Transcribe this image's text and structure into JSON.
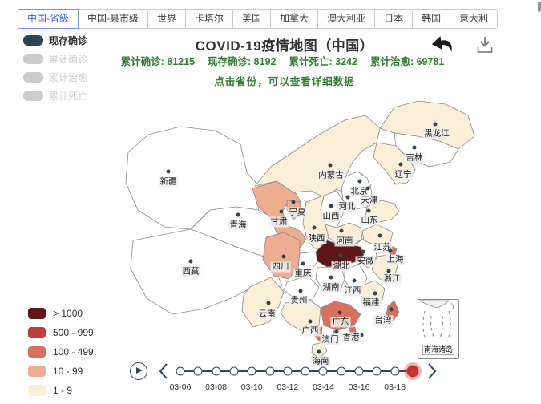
{
  "tabs": {
    "items": [
      {
        "label": "中国-省级",
        "active": true
      },
      {
        "label": "中国-县市级",
        "active": false
      },
      {
        "label": "世界",
        "active": false
      },
      {
        "label": "卡塔尔",
        "active": false
      },
      {
        "label": "美国",
        "active": false
      },
      {
        "label": "加拿大",
        "active": false
      },
      {
        "label": "澳大利亚",
        "active": false
      },
      {
        "label": "日本",
        "active": false
      },
      {
        "label": "韩国",
        "active": false
      },
      {
        "label": "意大利",
        "active": false
      }
    ]
  },
  "header": {
    "title": "COVID-19疫情地图（中国）",
    "stats": [
      {
        "label": "累计确诊",
        "value": "81215"
      },
      {
        "label": "现存确诊",
        "value": "8192"
      },
      {
        "label": "累计死亡",
        "value": "3242"
      },
      {
        "label": "累计治愈",
        "value": "69781"
      }
    ],
    "hint": "点击省份，可以查看详细数据"
  },
  "toolbox": {
    "icons": [
      {
        "name": "restore-back-arrow"
      },
      {
        "name": "save-as-image-download"
      }
    ]
  },
  "metric_legend": {
    "active_color": "#2f4554",
    "inactive_color": "#cccccc",
    "items": [
      {
        "label": "现存确诊",
        "active": true
      },
      {
        "label": "累计确诊",
        "active": false
      },
      {
        "label": "累计治愈",
        "active": false
      },
      {
        "label": "累计死亡",
        "active": false
      }
    ]
  },
  "visualmap": {
    "none_color": "#ffffff",
    "border_color": "#8a8a8a",
    "pieces": [
      {
        "key": "b5",
        "label": "> 1000",
        "color": "#5e1617"
      },
      {
        "key": "b4",
        "label": "500 - 999",
        "color": "#bf3f38"
      },
      {
        "key": "b3",
        "label": "100 - 499",
        "color": "#d8705d"
      },
      {
        "key": "b2",
        "label": "10 - 99",
        "color": "#eeac90"
      },
      {
        "key": "b1",
        "label": "1 - 9",
        "color": "#fcefd8"
      }
    ]
  },
  "inset": {
    "label": "南海诸岛"
  },
  "timeline": {
    "node_count": 14,
    "current_index": 13,
    "accent": "#c23531",
    "tick_labels": [
      "03-06",
      "03-08",
      "03-10",
      "03-12",
      "03-14",
      "03-16",
      "03-18"
    ]
  },
  "chart_data": {
    "type": "heatmap",
    "subtype": "china-province-choropleth",
    "title": "COVID-19疫情地图（中国）",
    "metric_shown": "现存确诊",
    "national_totals": {
      "累计确诊": 81215,
      "现存确诊": 8192,
      "累计死亡": 3242,
      "累计治愈": 69781
    },
    "bins": [
      "> 1000",
      "500 - 999",
      "100 - 499",
      "10 - 99",
      "1 - 9"
    ],
    "timeline_dates_labeled": [
      "03-06",
      "03-08",
      "03-10",
      "03-12",
      "03-14",
      "03-16",
      "03-18"
    ],
    "timeline_current": "last node (red)",
    "provinces": [
      {
        "id": "xinjiang",
        "name": "新疆",
        "bin": "none"
      },
      {
        "id": "xizang",
        "name": "西藏",
        "bin": "none"
      },
      {
        "id": "qinghai",
        "name": "青海",
        "bin": "none"
      },
      {
        "id": "gansu",
        "name": "甘肃",
        "bin": "b2"
      },
      {
        "id": "ningxia",
        "name": "宁夏",
        "bin": "b2"
      },
      {
        "id": "neimenggu",
        "name": "内蒙古",
        "bin": "b1"
      },
      {
        "id": "heilongjiang",
        "name": "黑龙江",
        "bin": "b1"
      },
      {
        "id": "jilin",
        "name": "吉林",
        "bin": "none"
      },
      {
        "id": "liaoning",
        "name": "辽宁",
        "bin": "b1"
      },
      {
        "id": "beijing",
        "name": "北京",
        "bin": "b3"
      },
      {
        "id": "tianjin",
        "name": "天津",
        "bin": "none"
      },
      {
        "id": "hebei",
        "name": "河北",
        "bin": "none"
      },
      {
        "id": "shanxi",
        "name": "山西",
        "bin": "none"
      },
      {
        "id": "shandong",
        "name": "山东",
        "bin": "b1"
      },
      {
        "id": "shaanxi",
        "name": "陕西",
        "bin": "b1"
      },
      {
        "id": "henan",
        "name": "河南",
        "bin": "b1"
      },
      {
        "id": "jiangsu",
        "name": "江苏",
        "bin": "b1"
      },
      {
        "id": "anhui",
        "name": "安徽",
        "bin": "none"
      },
      {
        "id": "shanghai",
        "name": "上海",
        "bin": "b3"
      },
      {
        "id": "zhejiang",
        "name": "浙江",
        "bin": "b1"
      },
      {
        "id": "sichuan",
        "name": "四川",
        "bin": "b2"
      },
      {
        "id": "chongqing",
        "name": "重庆",
        "bin": "none"
      },
      {
        "id": "hubei",
        "name": "湖北",
        "bin": "b5"
      },
      {
        "id": "hunan",
        "name": "湖南",
        "bin": "none"
      },
      {
        "id": "jiangxi",
        "name": "江西",
        "bin": "none"
      },
      {
        "id": "guizhou",
        "name": "贵州",
        "bin": "none"
      },
      {
        "id": "yunnan",
        "name": "云南",
        "bin": "b1"
      },
      {
        "id": "guangxi",
        "name": "广西",
        "bin": "b1"
      },
      {
        "id": "guangdong",
        "name": "广东",
        "bin": "b3"
      },
      {
        "id": "xianggang",
        "name": "香港",
        "bin": "b3"
      },
      {
        "id": "aomen",
        "name": "澳门",
        "bin": "b2"
      },
      {
        "id": "hainan",
        "name": "海南",
        "bin": "b1"
      },
      {
        "id": "fujian",
        "name": "福建",
        "bin": "b1"
      },
      {
        "id": "taiwan",
        "name": "台湾",
        "bin": "b3"
      }
    ]
  }
}
